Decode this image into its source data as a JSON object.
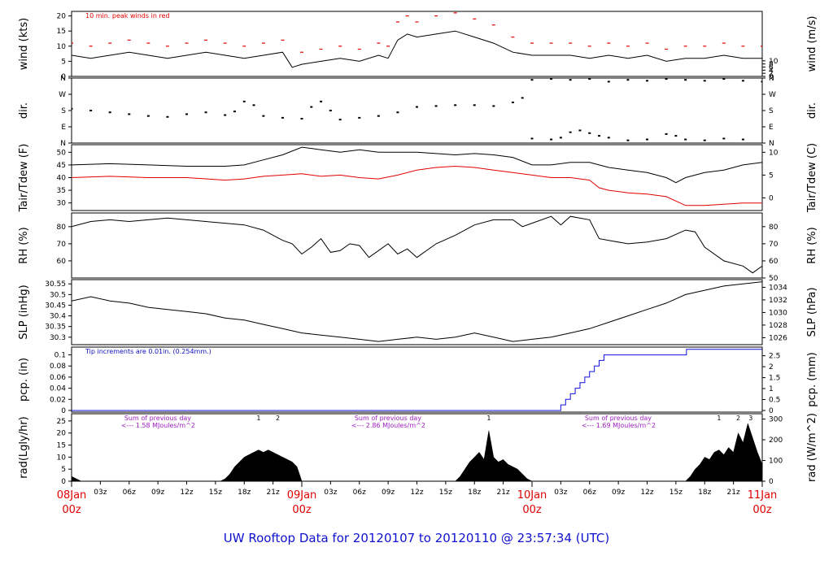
{
  "title": "UW Rooftop Data for 20120107  to  20120110 @ 23:57:34  (UTC)",
  "chart_data": {
    "type": "line",
    "time_axis": {
      "range_hours": [
        0,
        72
      ],
      "major": [
        {
          "hour": 0,
          "top": "08Jan",
          "bottom": "00z"
        },
        {
          "hour": 24,
          "top": "09Jan",
          "bottom": "00z"
        },
        {
          "hour": 48,
          "top": "10Jan",
          "bottom": "00z"
        },
        {
          "hour": 72,
          "top": "11Jan",
          "bottom": "00z"
        }
      ],
      "minor_labels": [
        "03z",
        "06z",
        "09z",
        "12z",
        "15z",
        "18z",
        "21z"
      ]
    },
    "panels": [
      {
        "id": "wind",
        "left_label": "wind (kts)",
        "right_label": "wind (m/s)",
        "ylim": [
          0,
          21.5
        ],
        "yticks": [
          0,
          5,
          10,
          15,
          20
        ],
        "right_ticks": [
          0,
          2,
          4,
          6,
          8,
          10
        ],
        "right_factor": 1.944,
        "annotation": "10 min. peak winds in red",
        "series": [
          {
            "kind": "line",
            "color": "#000000",
            "x": [
              0,
              2,
              4,
              6,
              8,
              10,
              12,
              14,
              16,
              18,
              20,
              22,
              23,
              24,
              26,
              28,
              30,
              32,
              33,
              34,
              35,
              36,
              38,
              40,
              42,
              44,
              46,
              48,
              50,
              52,
              54,
              56,
              58,
              60,
              62,
              64,
              66,
              68,
              70,
              72
            ],
            "y": [
              7,
              6,
              7,
              8,
              7,
              6,
              7,
              8,
              7,
              6,
              7,
              8,
              3,
              4,
              5,
              6,
              5,
              7,
              6,
              12,
              14,
              13,
              14,
              15,
              13,
              11,
              8,
              7,
              7,
              7,
              6,
              7,
              6,
              7,
              5,
              6,
              6,
              7,
              6,
              6
            ]
          },
          {
            "kind": "dashes",
            "color": "#e00000",
            "x": [
              0,
              2,
              4,
              6,
              8,
              10,
              12,
              14,
              16,
              18,
              20,
              22,
              24,
              26,
              28,
              30,
              32,
              33,
              34,
              35,
              36,
              38,
              40,
              42,
              44,
              46,
              48,
              50,
              52,
              54,
              56,
              58,
              60,
              62,
              64,
              66,
              68,
              70,
              72
            ],
            "y": [
              11,
              10,
              11,
              12,
              11,
              10,
              11,
              12,
              11,
              10,
              11,
              12,
              8,
              9,
              10,
              9,
              11,
              10,
              18,
              20,
              18,
              20,
              21,
              19,
              17,
              13,
              11,
              11,
              11,
              10,
              11,
              10,
              11,
              9,
              10,
              10,
              11,
              10,
              10
            ]
          }
        ]
      },
      {
        "id": "dir",
        "left_label": "dir.",
        "right_label": "dir.",
        "ylim": [
          0,
          360
        ],
        "ytick_values": [
          0,
          90,
          180,
          270,
          360
        ],
        "ytick_labels": [
          "N",
          "E",
          "S",
          "W",
          "N"
        ],
        "series": [
          {
            "kind": "scatter",
            "color": "#000000",
            "x": [
              0,
              2,
              4,
              6,
              8,
              10,
              12,
              14,
              16,
              17,
              18,
              19,
              20,
              22,
              24,
              25,
              26,
              27,
              28,
              30,
              32,
              34,
              36,
              38,
              40,
              42,
              44,
              46,
              47,
              48,
              50,
              52,
              54,
              56,
              58,
              60,
              62,
              64,
              66,
              68,
              70,
              72
            ],
            "y": [
              190,
              180,
              170,
              160,
              150,
              145,
              160,
              170,
              155,
              175,
              230,
              210,
              150,
              140,
              135,
              200,
              230,
              180,
              130,
              140,
              150,
              170,
              200,
              205,
              210,
              210,
              205,
              225,
              250,
              350,
              355,
              350,
              355,
              340,
              350,
              345,
              355,
              350,
              345,
              355,
              345,
              340
            ]
          },
          {
            "kind": "scatter",
            "color": "#000000",
            "x": [
              48,
              50,
              51,
              52,
              53,
              54,
              55,
              56,
              58,
              60,
              62,
              63,
              64,
              66,
              68,
              70
            ],
            "y": [
              25,
              20,
              30,
              60,
              70,
              55,
              40,
              30,
              15,
              20,
              50,
              40,
              20,
              15,
              25,
              20
            ]
          }
        ]
      },
      {
        "id": "temp",
        "left_label": "Tair/Tdew (F)",
        "right_label": "Tair/Tdew (C)",
        "ylim": [
          27,
          53
        ],
        "yticks": [
          30,
          35,
          40,
          45,
          50
        ],
        "right_ticks": [
          0,
          5,
          10
        ],
        "right_convert": "F_to_C",
        "series": [
          {
            "kind": "line",
            "name": "Tair",
            "color": "#000000",
            "x": [
              0,
              4,
              8,
              12,
              16,
              18,
              20,
              22,
              24,
              26,
              28,
              30,
              32,
              34,
              36,
              38,
              40,
              42,
              44,
              46,
              48,
              50,
              52,
              54,
              56,
              58,
              60,
              62,
              63,
              64,
              66,
              68,
              70,
              72
            ],
            "y": [
              45,
              45.5,
              45,
              44.5,
              44.5,
              45,
              47,
              49,
              52,
              51,
              50,
              51,
              50,
              50,
              50,
              49.5,
              49,
              49.5,
              49,
              48,
              45,
              45,
              46,
              46,
              44,
              43,
              42,
              40,
              38,
              40,
              42,
              43,
              45,
              46
            ]
          },
          {
            "kind": "line",
            "name": "Tdew",
            "color": "#e00000",
            "x": [
              0,
              4,
              8,
              12,
              16,
              18,
              20,
              22,
              24,
              26,
              28,
              30,
              32,
              34,
              36,
              38,
              40,
              42,
              44,
              46,
              48,
              50,
              52,
              54,
              55,
              56,
              58,
              60,
              62,
              64,
              66,
              68,
              70,
              72
            ],
            "y": [
              40,
              40.5,
              40,
              40,
              39,
              39.5,
              40.5,
              41,
              41.5,
              40.5,
              41,
              40,
              39.5,
              41,
              43,
              44,
              44.5,
              44,
              43,
              42,
              41,
              40,
              40,
              39,
              36,
              35,
              34,
              33.5,
              32.5,
              29,
              29,
              29.5,
              30,
              30
            ]
          }
        ]
      },
      {
        "id": "rh",
        "left_label": "RH (%)",
        "right_label": "RH (%)",
        "ylim": [
          50,
          88
        ],
        "yticks": [
          60,
          70,
          80
        ],
        "right_ticks": [
          50,
          60,
          70,
          80
        ],
        "series": [
          {
            "kind": "line",
            "color": "#000000",
            "x": [
              0,
              2,
              4,
              6,
              8,
              10,
              12,
              14,
              16,
              18,
              20,
              22,
              23,
              24,
              25,
              26,
              27,
              28,
              29,
              30,
              31,
              32,
              33,
              34,
              35,
              36,
              38,
              40,
              42,
              44,
              46,
              47,
              48,
              50,
              51,
              52,
              54,
              55,
              56,
              58,
              60,
              62,
              64,
              65,
              66,
              68,
              70,
              71,
              72
            ],
            "y": [
              80,
              83,
              84,
              83,
              84,
              85,
              84,
              83,
              82,
              81,
              78,
              72,
              70,
              64,
              68,
              73,
              65,
              66,
              70,
              69,
              62,
              66,
              70,
              64,
              67,
              62,
              70,
              75,
              81,
              84,
              84,
              80,
              82,
              86,
              81,
              86,
              84,
              73,
              72,
              70,
              71,
              73,
              78,
              77,
              68,
              60,
              57,
              53,
              57
            ]
          }
        ]
      },
      {
        "id": "slp",
        "left_label": "SLP (inHg)",
        "right_label": "SLP (hPa)",
        "ylim": [
          30.265,
          30.57
        ],
        "yticks": [
          30.3,
          30.35,
          30.4,
          30.45,
          30.5,
          30.55
        ],
        "right_ticks": [
          1026,
          1028,
          1030,
          1032,
          1034
        ],
        "right_factor": 33.8639,
        "series": [
          {
            "kind": "line",
            "color": "#000000",
            "x": [
              0,
              2,
              4,
              6,
              8,
              10,
              12,
              14,
              16,
              18,
              20,
              22,
              24,
              26,
              28,
              30,
              32,
              34,
              36,
              38,
              40,
              42,
              44,
              46,
              48,
              50,
              52,
              54,
              56,
              58,
              60,
              62,
              64,
              66,
              68,
              70,
              72
            ],
            "y": [
              30.47,
              30.49,
              30.47,
              30.46,
              30.44,
              30.43,
              30.42,
              30.41,
              30.39,
              30.38,
              30.36,
              30.34,
              30.32,
              30.31,
              30.3,
              30.29,
              30.28,
              30.29,
              30.3,
              30.29,
              30.3,
              30.32,
              30.3,
              30.28,
              30.29,
              30.3,
              30.32,
              30.34,
              30.37,
              30.4,
              30.43,
              30.46,
              30.5,
              30.52,
              30.54,
              30.55,
              30.56
            ]
          }
        ]
      },
      {
        "id": "pcp",
        "left_label": "pcp. (in)",
        "right_label": "pcp. (mm)",
        "ylim": [
          -0.003,
          0.114
        ],
        "yticks": [
          0.0,
          0.02,
          0.04,
          0.06,
          0.08,
          0.1
        ],
        "right_ticks": [
          0,
          0.5,
          1,
          1.5,
          2,
          2.5
        ],
        "right_factor": 25.4,
        "annotation": "Tip increments are 0.01in. (0.254mm.)",
        "series": [
          {
            "kind": "step",
            "color": "#1010e0",
            "x": [
              0,
              50.5,
              51,
              51.5,
              52,
              52.5,
              53,
              53.5,
              54,
              54.5,
              55,
              55.5,
              56,
              61,
              64,
              64.1,
              72
            ],
            "y": [
              0,
              0,
              0.01,
              0.02,
              0.03,
              0.04,
              0.05,
              0.06,
              0.07,
              0.08,
              0.09,
              0.1,
              0.1,
              0.1,
              0.1,
              0.11,
              0.11
            ]
          }
        ]
      },
      {
        "id": "rad",
        "left_label": "rad(Lgly/hr)",
        "right_label": "rad (W/m^2)",
        "ylim": [
          0,
          28
        ],
        "yticks": [
          0,
          5,
          10,
          15,
          20,
          25
        ],
        "right_ticks": [
          0,
          100,
          200,
          300
        ],
        "right_factor": 11.63,
        "notes": [
          {
            "hour": 5.5,
            "line1": "Sum of previous day",
            "line2": "<--- 1.58 MJoules/m^2"
          },
          {
            "hour": 29.5,
            "line1": "Sum of previous day",
            "line2": "<--- 2.86 MJoules/m^2"
          },
          {
            "hour": 53.5,
            "line1": "Sum of previous day",
            "line2": "<--- 1.69 MJoules/m^2"
          }
        ],
        "markers": [
          {
            "hour": 19.5,
            "label": "1"
          },
          {
            "hour": 21.5,
            "label": "2"
          },
          {
            "hour": 43.5,
            "label": "1"
          },
          {
            "hour": 67.5,
            "label": "1"
          },
          {
            "hour": 69.5,
            "label": "2"
          },
          {
            "hour": 70.8,
            "label": "3"
          }
        ],
        "series": [
          {
            "kind": "area",
            "color": "#000000",
            "x": [
              0,
              0.5,
              1,
              15.5,
              16,
              16.5,
              17,
              17.5,
              18,
              18.5,
              19,
              19.5,
              20,
              20.5,
              21,
              21.5,
              22,
              22.5,
              23,
              23.5,
              24,
              40,
              40.5,
              41,
              41.5,
              42,
              42.5,
              43,
              43.5,
              44,
              44.5,
              45,
              45.5,
              46,
              46.5,
              47,
              47.5,
              48,
              64,
              64.5,
              65,
              65.5,
              66,
              66.5,
              67,
              67.5,
              68,
              68.5,
              69,
              69.5,
              70,
              70.5,
              71,
              71.5,
              72
            ],
            "y": [
              2,
              1,
              0,
              0,
              1,
              3,
              6,
              8,
              10,
              11,
              12,
              13,
              12,
              13,
              12,
              11,
              10,
              9,
              8,
              6,
              0,
              0,
              2,
              5,
              8,
              10,
              12,
              9,
              21,
              10,
              8,
              9,
              7,
              6,
              5,
              3,
              1,
              0,
              0,
              2,
              5,
              7,
              10,
              9,
              12,
              13,
              11,
              14,
              12,
              20,
              16,
              24,
              18,
              12,
              7
            ]
          }
        ]
      }
    ]
  }
}
